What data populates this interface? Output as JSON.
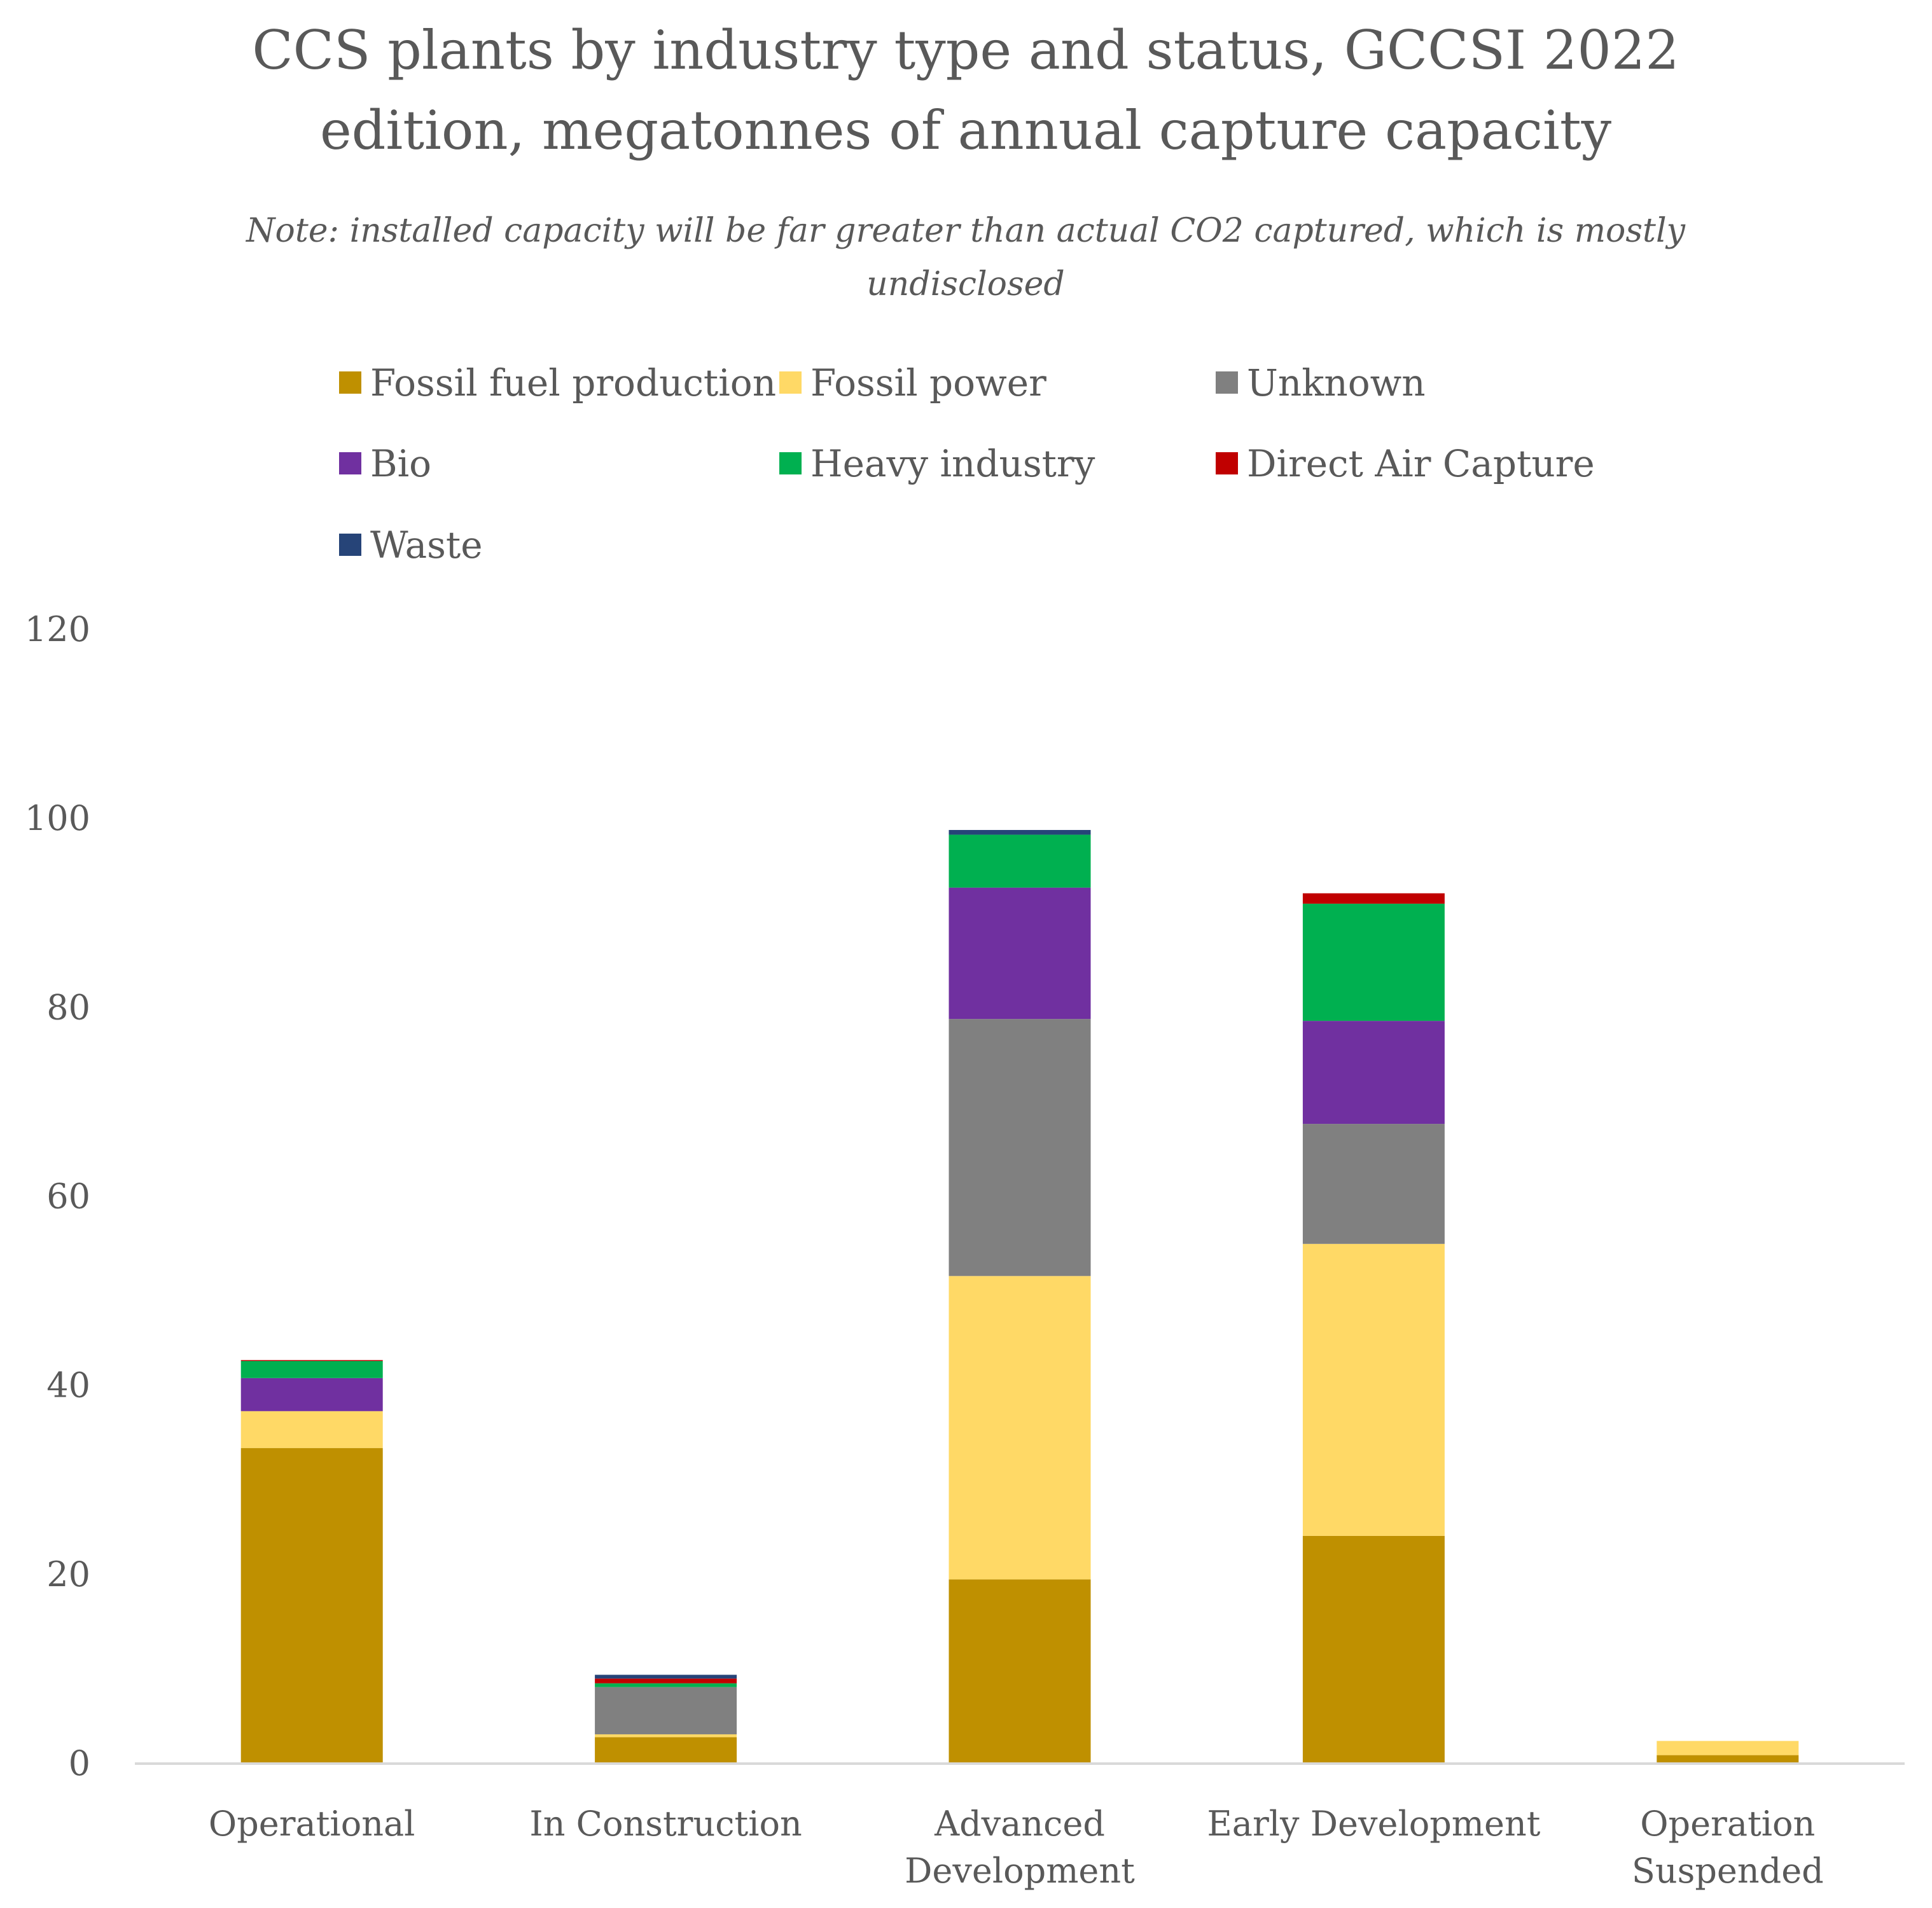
{
  "chart_data": {
    "type": "bar",
    "stacked": true,
    "title_lines": [
      "CCS plants by industry type and status, GCCSI 2022",
      "edition, megatonnes of annual capture capacity"
    ],
    "subtitle_lines": [
      "Note: installed capacity will be far greater than actual CO2 captured, which is mostly",
      "undisclosed"
    ],
    "categories": [
      [
        "Operational"
      ],
      [
        "In Construction"
      ],
      [
        "Advanced",
        "Development"
      ],
      [
        "Early Development"
      ],
      [
        "Operation",
        "Suspended"
      ]
    ],
    "ylim": [
      0,
      120
    ],
    "yticks": [
      0,
      20,
      40,
      60,
      80,
      100,
      120
    ],
    "grid": false,
    "legend_position": "top",
    "series": [
      {
        "name": "Fossil fuel production",
        "color": "#BF9000",
        "values": [
          33.4,
          2.8,
          19.5,
          24.1,
          0.9
        ]
      },
      {
        "name": "Fossil power",
        "color": "#FFD966",
        "values": [
          3.9,
          0.3,
          32.1,
          30.9,
          1.5
        ]
      },
      {
        "name": "Unknown",
        "color": "#808080",
        "values": [
          0,
          5.0,
          27.2,
          12.7,
          0
        ]
      },
      {
        "name": "Bio",
        "color": "#7030A0",
        "values": [
          3.5,
          0,
          13.9,
          10.9,
          0
        ]
      },
      {
        "name": "Heavy industry",
        "color": "#00B050",
        "values": [
          1.8,
          0.4,
          5.6,
          12.4,
          0
        ]
      },
      {
        "name": "Direct Air Capture",
        "color": "#C00000",
        "values": [
          0.1,
          0.5,
          0,
          1.1,
          0
        ]
      },
      {
        "name": "Waste",
        "color": "#264478",
        "values": [
          0,
          0.4,
          0.5,
          0,
          0
        ]
      }
    ]
  }
}
